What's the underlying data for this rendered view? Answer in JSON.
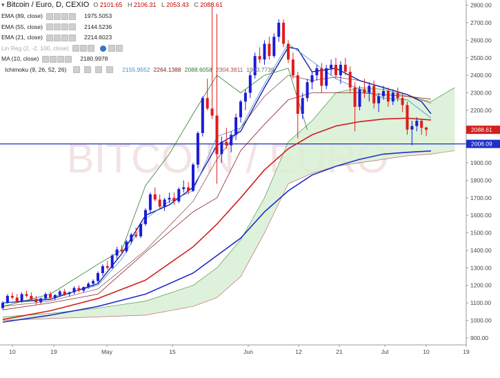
{
  "title": {
    "symbol": "Bitcoin / Euro, D, CEXIO",
    "open_label": "O",
    "open": "2101.65",
    "high_label": "H",
    "high": "2106.31",
    "low_label": "L",
    "low": "2053.43",
    "close_label": "C",
    "close": "2088.61"
  },
  "legend": [
    {
      "label": "EMA (89, close)",
      "value": "1975.5053",
      "color": "#1f2ec8"
    },
    {
      "label": "EMA (55, close)",
      "value": "2144.5236",
      "color": "#d01c1c"
    },
    {
      "label": "EMA (21, close)",
      "value": "2214.6023",
      "color": "#8a5a5a"
    },
    {
      "label": "Lin Reg (2, -2, 100, close)",
      "value": "",
      "color": "#aaaaaa"
    },
    {
      "label": "MA (10, close)",
      "value": "2180.9978",
      "color": "#1a1aa0"
    },
    {
      "label": "Ichimoku (9, 26, 52, 26)",
      "values": [
        "2155.9552",
        "2264.1388",
        "2088.6058",
        "2304.3811",
        "1953.7739"
      ],
      "colors": [
        "#3a8fd6",
        "#8b2020",
        "#2c7a2c",
        "#b44b4b",
        "#6d6d6d"
      ]
    }
  ],
  "price_axis": {
    "ticks": [
      "2800.00",
      "2700.00",
      "2600.00",
      "2500.00",
      "2400.00",
      "2300.00",
      "2200.00",
      "2100.00",
      "2000.00",
      "1900.00",
      "1800.00",
      "1700.00",
      "1600.00",
      "1500.00",
      "1400.00",
      "1300.00",
      "1200.00",
      "1100.00",
      "1000.00",
      "900.00"
    ]
  },
  "time_axis": {
    "ticks": [
      "10",
      "19",
      "May",
      "15",
      "Jun",
      "12",
      "21",
      "Jul",
      "10",
      "19"
    ]
  },
  "markers": [
    {
      "label": "2088.61",
      "color": "#d41f1f"
    },
    {
      "label": "2008.09",
      "color": "#1f2ec8"
    }
  ],
  "watermark": "BITCOIN / EURO",
  "chart_data": {
    "type": "candlestick",
    "ylim": [
      860,
      2830
    ],
    "horizontal_line": 2008.09,
    "last_price": 2088.61,
    "candles": [
      [
        1070,
        1110,
        1060,
        1100
      ],
      [
        1100,
        1150,
        1095,
        1140
      ],
      [
        1140,
        1160,
        1120,
        1130
      ],
      [
        1130,
        1150,
        1100,
        1110
      ],
      [
        1110,
        1160,
        1100,
        1150
      ],
      [
        1150,
        1170,
        1130,
        1140
      ],
      [
        1140,
        1160,
        1110,
        1120
      ],
      [
        1120,
        1140,
        1090,
        1105
      ],
      [
        1105,
        1130,
        1095,
        1125
      ],
      [
        1125,
        1160,
        1115,
        1150
      ],
      [
        1150,
        1165,
        1120,
        1130
      ],
      [
        1130,
        1150,
        1115,
        1145
      ],
      [
        1145,
        1175,
        1135,
        1165
      ],
      [
        1165,
        1180,
        1140,
        1150
      ],
      [
        1150,
        1165,
        1135,
        1160
      ],
      [
        1160,
        1195,
        1150,
        1185
      ],
      [
        1185,
        1200,
        1160,
        1170
      ],
      [
        1170,
        1195,
        1160,
        1190
      ],
      [
        1190,
        1220,
        1180,
        1210
      ],
      [
        1210,
        1235,
        1195,
        1225
      ],
      [
        1225,
        1280,
        1215,
        1270
      ],
      [
        1270,
        1320,
        1255,
        1310
      ],
      [
        1310,
        1340,
        1290,
        1300
      ],
      [
        1300,
        1380,
        1295,
        1370
      ],
      [
        1370,
        1420,
        1350,
        1405
      ],
      [
        1405,
        1430,
        1380,
        1395
      ],
      [
        1395,
        1460,
        1385,
        1450
      ],
      [
        1450,
        1500,
        1435,
        1490
      ],
      [
        1490,
        1530,
        1470,
        1480
      ],
      [
        1480,
        1560,
        1470,
        1550
      ],
      [
        1550,
        1640,
        1540,
        1630
      ],
      [
        1630,
        1730,
        1610,
        1720
      ],
      [
        1720,
        1760,
        1680,
        1690
      ],
      [
        1690,
        1720,
        1640,
        1650
      ],
      [
        1650,
        1700,
        1625,
        1690
      ],
      [
        1690,
        1730,
        1670,
        1700
      ],
      [
        1700,
        1730,
        1660,
        1680
      ],
      [
        1680,
        1760,
        1670,
        1750
      ],
      [
        1750,
        1800,
        1730,
        1760
      ],
      [
        1760,
        1790,
        1720,
        1740
      ],
      [
        1740,
        1900,
        1735,
        1890
      ],
      [
        1890,
        2080,
        1870,
        2070
      ],
      [
        2070,
        2280,
        2050,
        2270
      ],
      [
        2270,
        2380,
        2200,
        2210
      ],
      [
        2210,
        2790,
        2150,
        2170
      ],
      [
        2170,
        2750,
        1780,
        1950
      ],
      [
        1950,
        2050,
        1900,
        2020
      ],
      [
        2020,
        2100,
        1980,
        2000
      ],
      [
        2000,
        2080,
        1960,
        2060
      ],
      [
        2060,
        2180,
        2030,
        2160
      ],
      [
        2160,
        2260,
        2130,
        2250
      ],
      [
        2250,
        2320,
        2200,
        2300
      ],
      [
        2300,
        2420,
        2270,
        2400
      ],
      [
        2400,
        2530,
        2380,
        2510
      ],
      [
        2510,
        2560,
        2470,
        2490
      ],
      [
        2490,
        2600,
        2460,
        2580
      ],
      [
        2580,
        2620,
        2490,
        2510
      ],
      [
        2510,
        2640,
        2500,
        2620
      ],
      [
        2620,
        2720,
        2590,
        2700
      ],
      [
        2700,
        2720,
        2560,
        2580
      ],
      [
        2580,
        2600,
        2470,
        2490
      ],
      [
        2490,
        2530,
        2380,
        2400
      ],
      [
        2400,
        2420,
        2040,
        2180
      ],
      [
        2180,
        2300,
        2150,
        2270
      ],
      [
        2270,
        2380,
        2250,
        2360
      ],
      [
        2360,
        2420,
        2320,
        2400
      ],
      [
        2400,
        2460,
        2370,
        2440
      ],
      [
        2440,
        2470,
        2300,
        2340
      ],
      [
        2340,
        2460,
        2320,
        2440
      ],
      [
        2440,
        2490,
        2400,
        2460
      ],
      [
        2460,
        2500,
        2380,
        2400
      ],
      [
        2400,
        2480,
        2350,
        2460
      ],
      [
        2460,
        2500,
        2400,
        2420
      ],
      [
        2420,
        2450,
        2300,
        2330
      ],
      [
        2330,
        2360,
        2080,
        2220
      ],
      [
        2220,
        2340,
        2200,
        2320
      ],
      [
        2320,
        2380,
        2270,
        2300
      ],
      [
        2300,
        2360,
        2250,
        2340
      ],
      [
        2340,
        2370,
        2210,
        2240
      ],
      [
        2240,
        2300,
        2190,
        2280
      ],
      [
        2280,
        2340,
        2260,
        2310
      ],
      [
        2310,
        2330,
        2220,
        2250
      ],
      [
        2250,
        2320,
        2230,
        2300
      ],
      [
        2300,
        2330,
        2250,
        2270
      ],
      [
        2270,
        2300,
        2190,
        2230
      ],
      [
        2230,
        2250,
        2060,
        2090
      ],
      [
        2090,
        2140,
        2000,
        2110
      ],
      [
        2110,
        2160,
        2080,
        2140
      ],
      [
        2140,
        2150,
        2060,
        2100
      ],
      [
        2101.65,
        2106.31,
        2053.43,
        2088.61
      ]
    ],
    "series": [
      {
        "name": "EMA (89, close)",
        "color": "#1f2ec8",
        "width": 1.6,
        "points": [
          [
            0,
            990
          ],
          [
            10,
            1030
          ],
          [
            20,
            1080
          ],
          [
            30,
            1150
          ],
          [
            40,
            1270
          ],
          [
            50,
            1470
          ],
          [
            55,
            1620
          ],
          [
            60,
            1740
          ],
          [
            65,
            1830
          ],
          [
            70,
            1880
          ],
          [
            75,
            1920
          ],
          [
            80,
            1950
          ],
          [
            85,
            1960
          ],
          [
            90,
            1968
          ]
        ]
      },
      {
        "name": "EMA (55, close)",
        "color": "#d01c1c",
        "width": 1.6,
        "points": [
          [
            0,
            1005
          ],
          [
            10,
            1055
          ],
          [
            20,
            1125
          ],
          [
            30,
            1230
          ],
          [
            40,
            1420
          ],
          [
            45,
            1550
          ],
          [
            50,
            1700
          ],
          [
            55,
            1860
          ],
          [
            60,
            1980
          ],
          [
            65,
            2060
          ],
          [
            70,
            2110
          ],
          [
            75,
            2135
          ],
          [
            80,
            2150
          ],
          [
            85,
            2155
          ],
          [
            90,
            2145
          ]
        ]
      },
      {
        "name": "EMA (21, close)",
        "color": "#8a5a5a",
        "width": 0.8,
        "points": [
          [
            0,
            1080
          ],
          [
            10,
            1110
          ],
          [
            20,
            1180
          ],
          [
            30,
            1400
          ],
          [
            40,
            1680
          ],
          [
            45,
            1920
          ],
          [
            50,
            2100
          ],
          [
            55,
            2280
          ],
          [
            60,
            2400
          ],
          [
            65,
            2370
          ],
          [
            70,
            2390
          ],
          [
            75,
            2370
          ],
          [
            80,
            2330
          ],
          [
            85,
            2290
          ],
          [
            90,
            2240
          ]
        ]
      },
      {
        "name": "MA (10, close)",
        "color": "#1a1aa0",
        "width": 1.4,
        "points": [
          [
            0,
            1100
          ],
          [
            10,
            1120
          ],
          [
            20,
            1210
          ],
          [
            25,
            1380
          ],
          [
            30,
            1600
          ],
          [
            35,
            1660
          ],
          [
            40,
            1760
          ],
          [
            45,
            2000
          ],
          [
            50,
            2080
          ],
          [
            55,
            2330
          ],
          [
            60,
            2560
          ],
          [
            62,
            2550
          ],
          [
            65,
            2420
          ],
          [
            70,
            2440
          ],
          [
            75,
            2370
          ],
          [
            80,
            2330
          ],
          [
            85,
            2290
          ],
          [
            88,
            2250
          ],
          [
            90,
            2180
          ]
        ]
      },
      {
        "name": "Tenkan",
        "color": "#3a8fd6",
        "width": 0.8,
        "points": [
          [
            0,
            1100
          ],
          [
            10,
            1130
          ],
          [
            20,
            1200
          ],
          [
            25,
            1350
          ],
          [
            30,
            1580
          ],
          [
            35,
            1680
          ],
          [
            40,
            1740
          ],
          [
            45,
            2050
          ],
          [
            50,
            2100
          ],
          [
            55,
            2350
          ],
          [
            60,
            2580
          ],
          [
            65,
            2480
          ],
          [
            70,
            2380
          ],
          [
            75,
            2320
          ],
          [
            80,
            2270
          ],
          [
            85,
            2260
          ],
          [
            90,
            2156
          ]
        ]
      },
      {
        "name": "Kijun",
        "color": "#8b2020",
        "width": 0.8,
        "points": [
          [
            0,
            1060
          ],
          [
            10,
            1100
          ],
          [
            20,
            1150
          ],
          [
            30,
            1390
          ],
          [
            40,
            1620
          ],
          [
            45,
            1700
          ],
          [
            50,
            1970
          ],
          [
            55,
            2120
          ],
          [
            60,
            2260
          ],
          [
            65,
            2300
          ],
          [
            70,
            2300
          ],
          [
            75,
            2300
          ],
          [
            80,
            2290
          ],
          [
            85,
            2280
          ],
          [
            90,
            2264
          ]
        ]
      },
      {
        "name": "Chikou",
        "color": "#2c7a2c",
        "width": 0.8,
        "points": [
          [
            0,
            1080
          ],
          [
            10,
            1150
          ],
          [
            20,
            1320
          ],
          [
            25,
            1400
          ],
          [
            30,
            1770
          ],
          [
            35,
            1950
          ],
          [
            40,
            2180
          ],
          [
            45,
            2400
          ],
          [
            50,
            2300
          ],
          [
            55,
            2400
          ],
          [
            60,
            2440
          ],
          [
            64,
            2088
          ]
        ]
      }
    ],
    "cloud": {
      "span_a": [
        [
          0,
          1020
        ],
        [
          10,
          1040
        ],
        [
          20,
          1070
        ],
        [
          30,
          1110
        ],
        [
          40,
          1200
        ],
        [
          45,
          1300
        ],
        [
          50,
          1460
        ],
        [
          55,
          1700
        ],
        [
          60,
          2020
        ],
        [
          65,
          2140
        ],
        [
          70,
          2300
        ],
        [
          75,
          2330
        ],
        [
          80,
          2320
        ],
        [
          85,
          2280
        ],
        [
          90,
          2250
        ],
        [
          95,
          2330
        ]
      ],
      "span_b": [
        [
          0,
          1000
        ],
        [
          10,
          1010
        ],
        [
          20,
          1020
        ],
        [
          30,
          1030
        ],
        [
          40,
          1080
        ],
        [
          45,
          1130
        ],
        [
          50,
          1250
        ],
        [
          55,
          1500
        ],
        [
          60,
          1780
        ],
        [
          65,
          1840
        ],
        [
          70,
          1880
        ],
        [
          75,
          1900
        ],
        [
          80,
          1920
        ],
        [
          85,
          1940
        ],
        [
          90,
          1950
        ],
        [
          95,
          1970
        ]
      ],
      "color": "#d8efd3"
    }
  }
}
